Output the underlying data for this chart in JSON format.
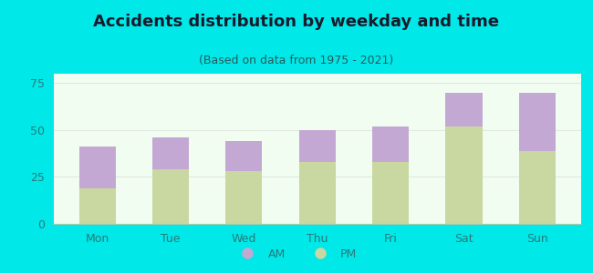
{
  "title": "Accidents distribution by weekday and time",
  "subtitle": "(Based on data from 1975 - 2021)",
  "categories": [
    "Mon",
    "Tue",
    "Wed",
    "Thu",
    "Fri",
    "Sat",
    "Sun"
  ],
  "pm_values": [
    19,
    29,
    28,
    33,
    33,
    52,
    39
  ],
  "am_values": [
    22,
    17,
    16,
    17,
    19,
    18,
    31
  ],
  "am_color": "#c4a8d4",
  "pm_color": "#c8d8a0",
  "background_color": "#00e8e8",
  "plot_bg_color": "#f2fdf2",
  "title_color": "#1a1a2e",
  "subtitle_color": "#2a5a5a",
  "tick_color": "#2a7a7a",
  "ylim": [
    0,
    80
  ],
  "yticks": [
    0,
    25,
    50,
    75
  ],
  "title_fontsize": 13,
  "subtitle_fontsize": 9,
  "tick_fontsize": 9,
  "legend_fontsize": 9,
  "bar_width": 0.5,
  "grid_color": "#e0e8e0",
  "grid_linewidth": 0.8
}
